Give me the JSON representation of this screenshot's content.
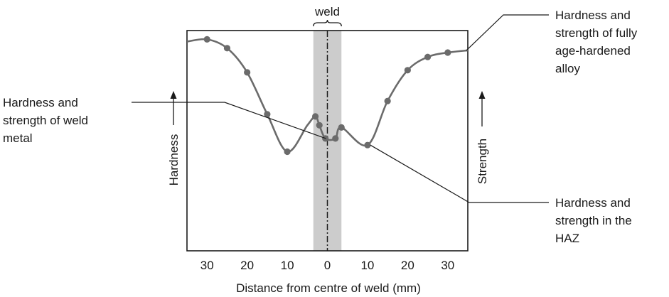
{
  "chart_data": {
    "type": "line",
    "title": "",
    "xlabel": "Distance from centre of weld (mm)",
    "ylabel": "Hardness",
    "ylabel_right": "Strength",
    "xlim": [
      -35,
      35
    ],
    "ylim": [
      0,
      100
    ],
    "x_ticks": [
      "30",
      "20",
      "10",
      "0",
      "10",
      "20",
      "30"
    ],
    "x_tick_values": [
      -30,
      -20,
      -10,
      0,
      10,
      20,
      30
    ],
    "weld_label": "weld",
    "weld_zone": [
      -3.5,
      3.5
    ],
    "curve_color": "#6b6b6b",
    "band_color": "#cccccc",
    "series": [
      {
        "points": [
          [
            -35,
            95
          ],
          [
            -30,
            96
          ],
          [
            -25,
            92
          ],
          [
            -20,
            81
          ],
          [
            -15,
            62
          ],
          [
            -10,
            45
          ],
          [
            -5,
            57
          ],
          [
            -3,
            61
          ],
          [
            -2,
            57
          ],
          [
            -0.5,
            51
          ],
          [
            2,
            51
          ],
          [
            3.5,
            56
          ],
          [
            10,
            48
          ],
          [
            15,
            68
          ],
          [
            20,
            82
          ],
          [
            25,
            88
          ],
          [
            30,
            90
          ],
          [
            35,
            91
          ]
        ],
        "markers": [
          [
            -30,
            96
          ],
          [
            -25,
            92
          ],
          [
            -20,
            81
          ],
          [
            -15,
            62
          ],
          [
            -10,
            45
          ],
          [
            -3,
            61
          ],
          [
            -2,
            57
          ],
          [
            -0.5,
            51
          ],
          [
            2,
            51
          ],
          [
            3.5,
            56
          ],
          [
            10,
            48
          ],
          [
            15,
            68
          ],
          [
            20,
            82
          ],
          [
            25,
            88
          ],
          [
            30,
            90
          ]
        ]
      }
    ],
    "annotations": [
      {
        "lines": [
          "Hardness and",
          "strength of fully",
          "age-hardened",
          "alloy"
        ],
        "target": [
          35,
          91
        ]
      },
      {
        "lines": [
          "Hardness and",
          "strength of weld",
          "metal"
        ],
        "target": [
          0,
          51
        ]
      },
      {
        "lines": [
          "Hardness and",
          "strength in the",
          "HAZ"
        ],
        "target": [
          10,
          48
        ]
      }
    ]
  }
}
